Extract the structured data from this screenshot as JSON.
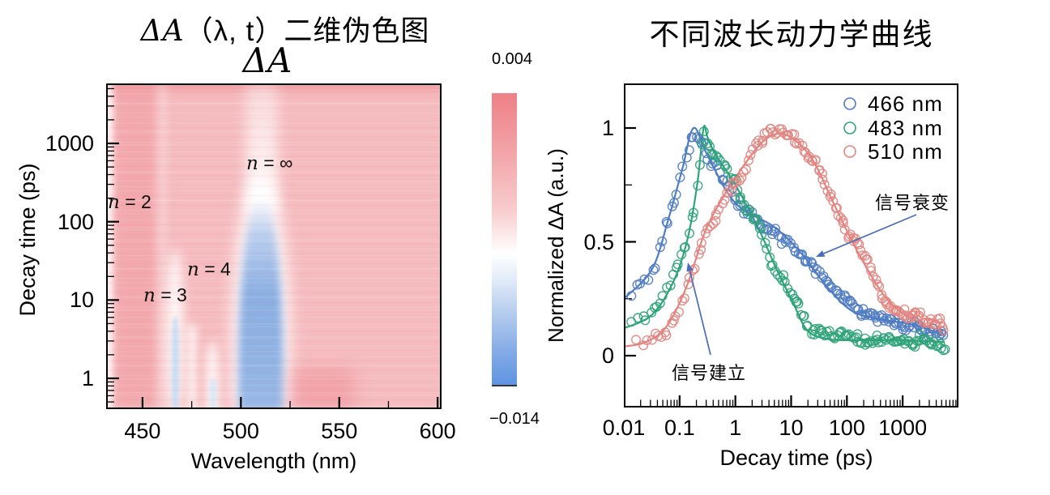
{
  "figure": {
    "left_panel": {
      "title_prefix": "ΔA",
      "title_suffix": "（λ, t）二维伪色图",
      "subtitle": "ΔA",
      "xlabel": "Wavelength (nm)",
      "ylabel": "Decay time (ps)",
      "x_tick_labels": [
        "450",
        "500",
        "550",
        "600"
      ],
      "y_tick_labels": [
        "1",
        "10",
        "100",
        "1000"
      ],
      "annotations": [
        {
          "label": "n = 2"
        },
        {
          "label": "n = 3"
        },
        {
          "label": "n = 4"
        },
        {
          "label": "n = ∞"
        }
      ],
      "colorbar": {
        "top_label": "0.004",
        "bottom_label": "−0.014"
      }
    },
    "right_panel": {
      "title": "不同波长动力学曲线",
      "xlabel": "Decay time (ps)",
      "ylabel": "Normalized ΔA (a.u.)",
      "x_tick_labels": [
        "0.01",
        "0.1",
        "1",
        "10",
        "100",
        "1000"
      ],
      "y_tick_labels": [
        "0",
        "0.5",
        "1"
      ],
      "legend": [
        "466 nm",
        "483 nm",
        "510 nm"
      ],
      "annotations": {
        "decay": "信号衰变",
        "rise": "信号建立"
      }
    }
  },
  "chart_data": [
    {
      "type": "heatmap",
      "title": "ΔA（λ, t）二维伪色图",
      "xlabel": "Wavelength (nm)",
      "ylabel": "Decay time (ps)",
      "x_range_nm": [
        431,
        602
      ],
      "y_range_ps": [
        0.4,
        5900
      ],
      "y_scale": "log",
      "colorbar": {
        "label": "ΔA",
        "max": 0.004,
        "min": -0.014,
        "max_color": "#ee8085",
        "mid_color": "#ffffff",
        "min_color": "#5e94e1"
      },
      "background": "positive ΔA (pink/red) everywhere else",
      "features": [
        {
          "label": "n = 2",
          "wavelength_nm": 435,
          "sign": "weak",
          "extent_ps": [
            0.4,
            5900
          ]
        },
        {
          "label": "n = 3",
          "wavelength_nm": 466,
          "sign": "negative",
          "extent_ps": [
            0.4,
            30
          ]
        },
        {
          "label": "n = 4",
          "wavelength_nm": 486,
          "sign": "negative",
          "extent_ps": [
            0.4,
            8
          ]
        },
        {
          "label": "n = ∞",
          "wavelength_nm": 510,
          "sign": "strong negative",
          "extent_ps": [
            0.4,
            300
          ]
        }
      ]
    },
    {
      "type": "line+scatter",
      "title": "不同波长动力学曲线",
      "xlabel": "Decay time (ps)",
      "ylabel": "Normalized ΔA (a.u.)",
      "x_scale": "log",
      "xlim": [
        0.01,
        10000
      ],
      "ylim": [
        -0.24,
        1.2
      ],
      "y_major_ticks": [
        0,
        0.5,
        1
      ],
      "y_minor_ticks": [
        0.25,
        0.75
      ],
      "legend_position": "top-right",
      "marker": "open-circle",
      "series": [
        {
          "name": "466 nm",
          "color": "#4f7cc2",
          "fit_points": [
            [
              0.01,
              0.25
            ],
            [
              0.032,
              0.38
            ],
            [
              0.063,
              0.6
            ],
            [
              0.112,
              0.82
            ],
            [
              0.178,
              1.0
            ],
            [
              0.316,
              0.88
            ],
            [
              1,
              0.67
            ],
            [
              5,
              0.565
            ],
            [
              15.8,
              0.445
            ],
            [
              44.7,
              0.3
            ],
            [
              126,
              0.195
            ],
            [
              398,
              0.16
            ],
            [
              1585,
              0.135
            ],
            [
              5620,
              0.09
            ]
          ]
        },
        {
          "name": "483 nm",
          "color": "#2fa379",
          "fit_points": [
            [
              0.01,
              0.12
            ],
            [
              0.032,
              0.18
            ],
            [
              0.079,
              0.33
            ],
            [
              0.141,
              0.52
            ],
            [
              0.209,
              0.76
            ],
            [
              0.269,
              1.0
            ],
            [
              0.316,
              0.96
            ],
            [
              0.437,
              0.885
            ],
            [
              1,
              0.75
            ],
            [
              2.63,
              0.556
            ],
            [
              5.37,
              0.384
            ],
            [
              10.5,
              0.24
            ],
            [
              20,
              0.108
            ],
            [
              50,
              0.072
            ],
            [
              158,
              0.068
            ],
            [
              1000,
              0.068
            ],
            [
              5620,
              0.06
            ]
          ]
        },
        {
          "name": "510 nm",
          "color": "#e28480",
          "fit_points": [
            [
              0.01,
              0.04
            ],
            [
              0.025,
              0.06
            ],
            [
              0.059,
              0.13
            ],
            [
              0.132,
              0.3
            ],
            [
              0.282,
              0.54
            ],
            [
              0.55,
              0.68
            ],
            [
              1.2,
              0.81
            ],
            [
              2.82,
              0.93
            ],
            [
              5.62,
              0.975
            ],
            [
              11.2,
              0.95
            ],
            [
              25,
              0.855
            ],
            [
              63,
              0.65
            ],
            [
              178,
              0.43
            ],
            [
              562,
              0.24
            ],
            [
              2000,
              0.14
            ],
            [
              5620,
              0.11
            ]
          ]
        }
      ],
      "arrow_annotations": [
        {
          "text": "信号衰变",
          "meaning": "signal decay"
        },
        {
          "text": "信号建立",
          "meaning": "signal build-up"
        }
      ]
    }
  ]
}
